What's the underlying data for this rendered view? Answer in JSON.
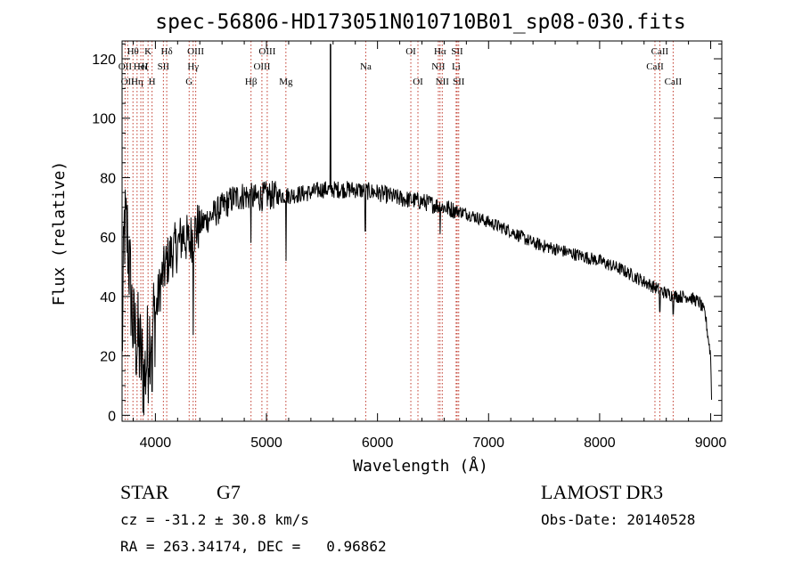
{
  "chart_data": {
    "type": "line",
    "title": "spec-56806-HD173051N010710B01_sp08-030.fits",
    "xlabel": "Wavelength (Å)",
    "ylabel": "Flux (relative)",
    "xlim": [
      3700,
      9100
    ],
    "ylim": [
      -2,
      126
    ],
    "xticks": [
      4000,
      5000,
      6000,
      7000,
      8000,
      9000
    ],
    "yticks": [
      0,
      20,
      40,
      60,
      80,
      100,
      120
    ],
    "grid": false,
    "series": [
      {
        "name": "flux",
        "anchors": [
          [
            3700,
            20
          ],
          [
            3720,
            63
          ],
          [
            3750,
            60
          ],
          [
            3800,
            28
          ],
          [
            3850,
            24
          ],
          [
            3900,
            12
          ],
          [
            3950,
            28
          ],
          [
            4000,
            34
          ],
          [
            4050,
            45
          ],
          [
            4100,
            51
          ],
          [
            4150,
            55
          ],
          [
            4200,
            57
          ],
          [
            4250,
            61
          ],
          [
            4300,
            58
          ],
          [
            4350,
            62
          ],
          [
            4400,
            64
          ],
          [
            4500,
            67
          ],
          [
            4600,
            70
          ],
          [
            4700,
            73
          ],
          [
            4800,
            74
          ],
          [
            4900,
            73
          ],
          [
            5000,
            74
          ],
          [
            5200,
            74
          ],
          [
            5400,
            75
          ],
          [
            5500,
            76
          ],
          [
            5600,
            76
          ],
          [
            5800,
            76
          ],
          [
            6000,
            75
          ],
          [
            6200,
            73
          ],
          [
            6400,
            72
          ],
          [
            6500,
            71
          ],
          [
            6600,
            70
          ],
          [
            6700,
            69
          ],
          [
            6800,
            68
          ],
          [
            7000,
            65
          ],
          [
            7200,
            62
          ],
          [
            7400,
            58
          ],
          [
            7600,
            56
          ],
          [
            7800,
            54
          ],
          [
            8000,
            52
          ],
          [
            8200,
            49
          ],
          [
            8400,
            45
          ],
          [
            8600,
            41
          ],
          [
            8700,
            40
          ],
          [
            8800,
            40
          ],
          [
            8900,
            38
          ],
          [
            8950,
            34
          ],
          [
            9000,
            20
          ],
          [
            9010,
            2
          ]
        ],
        "spikes": [
          {
            "x": 5577,
            "y": 125
          },
          {
            "x": 5890,
            "y": 62
          },
          {
            "x": 5175,
            "y": 52
          },
          {
            "x": 4340,
            "y": 27
          },
          {
            "x": 4861,
            "y": 58
          },
          {
            "x": 6563,
            "y": 61
          },
          {
            "x": 3935,
            "y": 4
          },
          {
            "x": 3970,
            "y": 8
          },
          {
            "x": 8542,
            "y": 35
          },
          {
            "x": 8662,
            "y": 34
          }
        ]
      }
    ],
    "line_markers": [
      {
        "x": 3727,
        "label": "OII",
        "row": 2
      },
      {
        "x": 3750,
        "label": "OII",
        "row": 3
      },
      {
        "x": 3798,
        "label": "Hθ",
        "row": 1
      },
      {
        "x": 3835,
        "label": "Hη",
        "row": 3
      },
      {
        "x": 3869,
        "label": "HeI",
        "row": 2
      },
      {
        "x": 3889,
        "label": "Hζ",
        "row": 2
      },
      {
        "x": 3934,
        "label": "K",
        "row": 1
      },
      {
        "x": 3970,
        "label": "H",
        "row": 3
      },
      {
        "x": 4072,
        "label": "SII",
        "row": 2
      },
      {
        "x": 4102,
        "label": "Hδ",
        "row": 1
      },
      {
        "x": 4304,
        "label": "G",
        "row": 3
      },
      {
        "x": 4340,
        "label": "Hγ",
        "row": 2
      },
      {
        "x": 4363,
        "label": "OIII",
        "row": 1
      },
      {
        "x": 4861,
        "label": "Hβ",
        "row": 3
      },
      {
        "x": 4959,
        "label": "OIII",
        "row": 2
      },
      {
        "x": 5007,
        "label": "OIII",
        "row": 1
      },
      {
        "x": 5175,
        "label": "Mg",
        "row": 3
      },
      {
        "x": 5894,
        "label": "Na",
        "row": 2
      },
      {
        "x": 6300,
        "label": "OI",
        "row": 1
      },
      {
        "x": 6364,
        "label": "OI",
        "row": 3
      },
      {
        "x": 6548,
        "label": "NII",
        "row": 2
      },
      {
        "x": 6563,
        "label": "Hα",
        "row": 1
      },
      {
        "x": 6583,
        "label": "NII",
        "row": 3
      },
      {
        "x": 6717,
        "label": "SII",
        "row": 1
      },
      {
        "x": 6731,
        "label": "SII",
        "row": 3
      },
      {
        "x": 6708,
        "label": "Li",
        "row": 2
      },
      {
        "x": 8498,
        "label": "CaII",
        "row": 2
      },
      {
        "x": 8542,
        "label": "CaII",
        "row": 1
      },
      {
        "x": 8662,
        "label": "CaII",
        "row": 3
      }
    ]
  },
  "info": {
    "object_class": "STAR",
    "subclass": "G7",
    "redshift": "cz = -31.2 ± 30.8 km/s",
    "coordinates": "RA = 263.34174, DEC =   0.96862",
    "survey": "LAMOST DR3",
    "obs_date": "Obs-Date: 20140528"
  }
}
